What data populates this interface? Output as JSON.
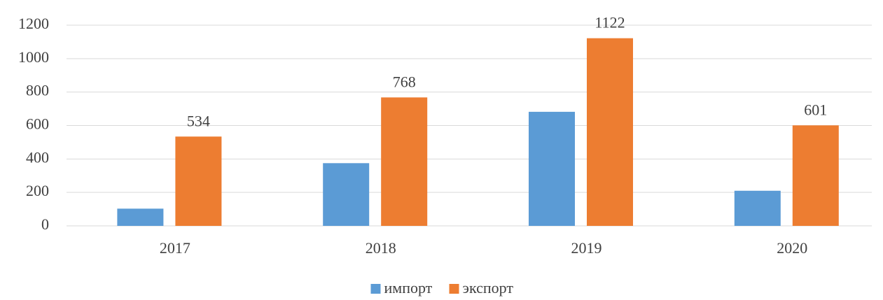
{
  "chart_data": {
    "type": "bar",
    "categories": [
      "2017",
      "2018",
      "2019",
      "2020"
    ],
    "series": [
      {
        "name": "импорт",
        "color": "#5b9bd5",
        "values": [
          103,
          375,
          682,
          210
        ],
        "data_labels": false
      },
      {
        "name": "экспорт",
        "color": "#ed7d31",
        "values": [
          534,
          768,
          1122,
          601
        ],
        "data_labels": true
      }
    ],
    "ylim": [
      0,
      1200
    ],
    "yticks": [
      0,
      200,
      400,
      600,
      800,
      1000,
      1200
    ],
    "grid": true,
    "legend": "bottom"
  }
}
